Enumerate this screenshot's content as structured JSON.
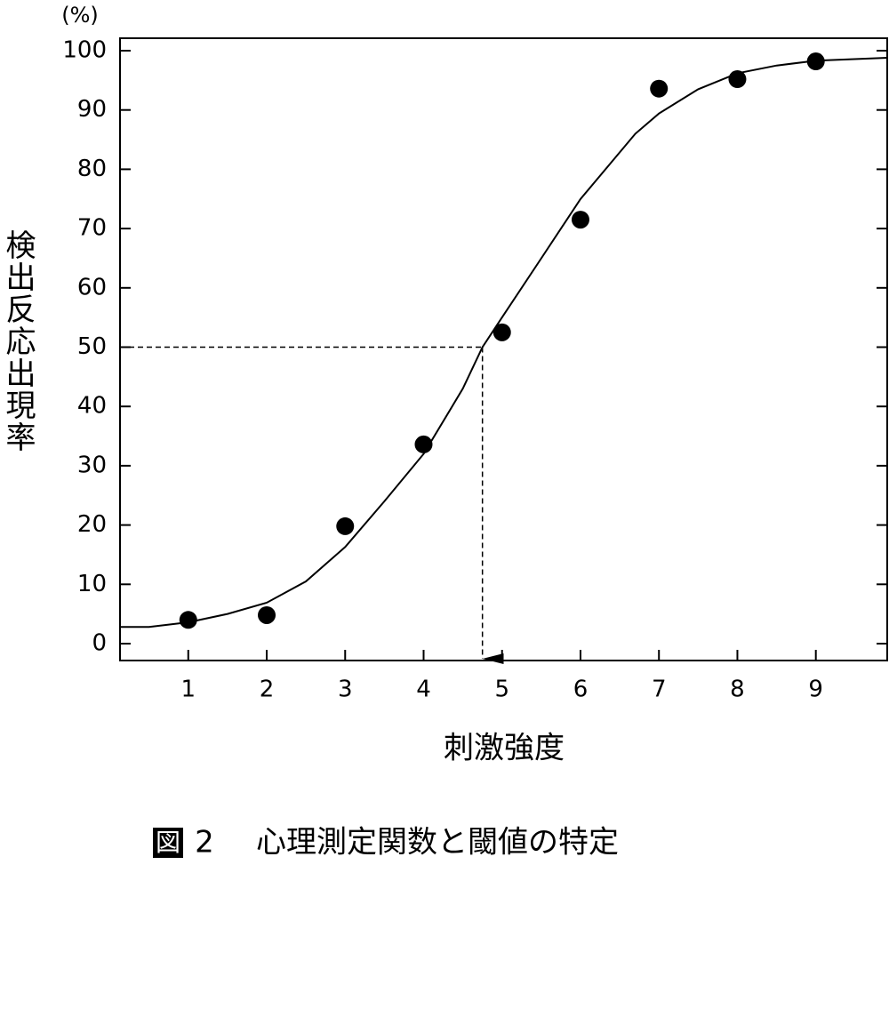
{
  "chart_data": {
    "type": "scatter",
    "y_unit": "(%)",
    "y_label": "検出反応出現率",
    "x_label": "刺激強度",
    "caption": {
      "label": "図",
      "number": "2",
      "text": "心理測定関数と閾値の特定"
    },
    "xlim": [
      0.13,
      9.91
    ],
    "ylim": [
      -2.85,
      102.1
    ],
    "xticks": [
      1,
      2,
      3,
      4,
      5,
      6,
      7,
      8,
      9
    ],
    "yticks": [
      0,
      10,
      20,
      30,
      40,
      50,
      60,
      70,
      80,
      90,
      100
    ],
    "series": [
      {
        "kind": "scatter",
        "color": "#000000",
        "x": [
          1,
          2,
          3,
          4,
          5,
          6,
          7,
          8,
          9
        ],
        "values": [
          4,
          4.8,
          19.8,
          33.6,
          52.5,
          71.5,
          93.6,
          95.2,
          98.2
        ]
      },
      {
        "kind": "line",
        "color": "#000000",
        "x": [
          0.13,
          0.5,
          1,
          1.5,
          2,
          2.5,
          3,
          3.5,
          4,
          4.5,
          4.75,
          5,
          5.5,
          6,
          6.7,
          7,
          7.5,
          8,
          8.5,
          9,
          9.91
        ],
        "values": [
          2.8,
          2.8,
          3.6,
          5,
          6.9,
          10.5,
          16.3,
          24,
          32,
          43,
          50,
          55,
          65,
          75,
          86,
          89.4,
          93.5,
          96.2,
          97.5,
          98.3,
          98.8
        ]
      }
    ],
    "threshold": {
      "x": 4.75,
      "y": 50
    }
  }
}
